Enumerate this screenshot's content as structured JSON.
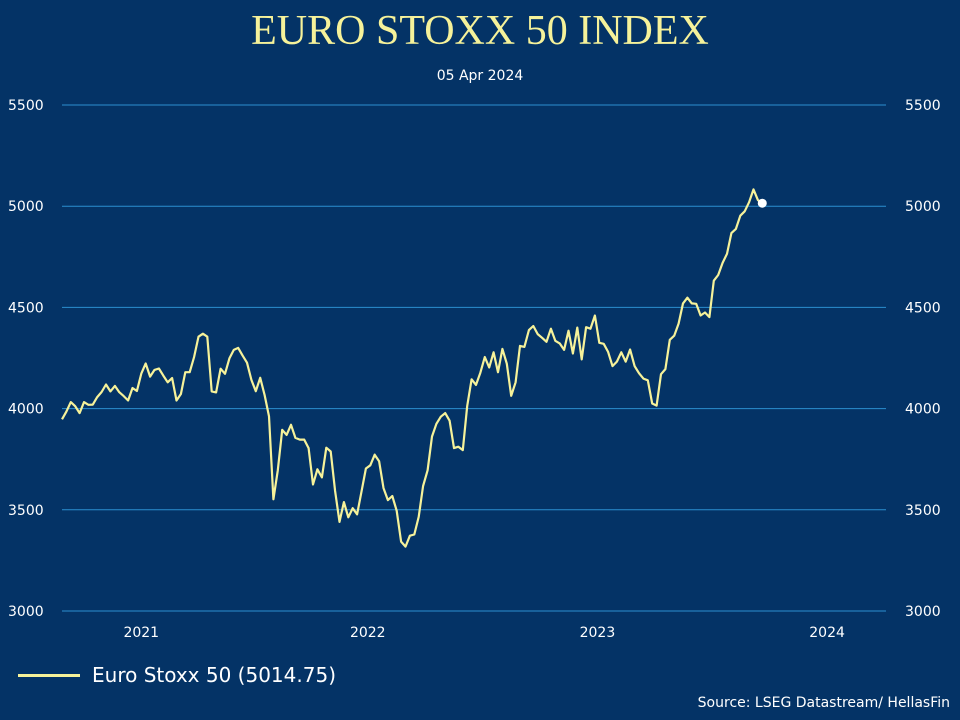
{
  "chart_data": {
    "type": "line",
    "title": "EURO STOXX 50 INDEX",
    "subtitle": "05 Apr 2024",
    "ylim": [
      3000,
      5500
    ],
    "yticks": [
      3000,
      3500,
      4000,
      4500,
      5000,
      5500
    ],
    "xlim": [
      "2020-09-11",
      "2024-04-19"
    ],
    "xticks": [
      {
        "label": "2021",
        "date": "2021-01-15"
      },
      {
        "label": "2022",
        "date": "2022-01-10"
      },
      {
        "label": "2023",
        "date": "2023-01-10"
      },
      {
        "label": "2024",
        "date": "2024-01-10"
      }
    ],
    "grid": true,
    "legend_position": "bottom-left",
    "source": "Source: LSEG Datastream/ HellasFin",
    "series": [
      {
        "name": "Euro Stoxx 50 (5014.75)",
        "color": "#f6f29a",
        "last_marker_color": "#ffffff",
        "points": [
          [
            "2020-09-11",
            3947
          ],
          [
            "2020-09-18",
            3985
          ],
          [
            "2020-09-25",
            4032
          ],
          [
            "2020-10-02",
            4012
          ],
          [
            "2020-10-09",
            3978
          ],
          [
            "2020-10-16",
            4032
          ],
          [
            "2020-10-23",
            4019
          ],
          [
            "2020-10-30",
            4020
          ],
          [
            "2020-11-06",
            4057
          ],
          [
            "2020-11-13",
            4082
          ],
          [
            "2020-11-20",
            4119
          ],
          [
            "2020-11-27",
            4085
          ],
          [
            "2020-12-04",
            4112
          ],
          [
            "2020-12-11",
            4081
          ],
          [
            "2020-12-18",
            4062
          ],
          [
            "2020-12-25",
            4040
          ],
          [
            "2021-01-01",
            4102
          ],
          [
            "2021-01-08",
            4087
          ],
          [
            "2021-01-15",
            4173
          ],
          [
            "2021-01-22",
            4223
          ],
          [
            "2021-01-29",
            4158
          ],
          [
            "2021-02-05",
            4191
          ],
          [
            "2021-02-12",
            4198
          ],
          [
            "2021-02-19",
            4163
          ],
          [
            "2021-02-26",
            4130
          ],
          [
            "2021-03-05",
            4151
          ],
          [
            "2021-03-12",
            4040
          ],
          [
            "2021-03-19",
            4072
          ],
          [
            "2021-03-26",
            4180
          ],
          [
            "2021-04-02",
            4180
          ],
          [
            "2021-04-09",
            4255
          ],
          [
            "2021-04-16",
            4355
          ],
          [
            "2021-04-23",
            4370
          ],
          [
            "2021-04-30",
            4355
          ],
          [
            "2021-05-07",
            4085
          ],
          [
            "2021-05-14",
            4080
          ],
          [
            "2021-05-21",
            4197
          ],
          [
            "2021-05-28",
            4172
          ],
          [
            "2021-06-04",
            4248
          ],
          [
            "2021-06-11",
            4290
          ],
          [
            "2021-06-18",
            4300
          ],
          [
            "2021-06-25",
            4262
          ],
          [
            "2021-07-02",
            4227
          ],
          [
            "2021-07-09",
            4142
          ],
          [
            "2021-07-16",
            4086
          ],
          [
            "2021-07-23",
            4152
          ],
          [
            "2021-07-30",
            4067
          ],
          [
            "2021-08-06",
            3962
          ],
          [
            "2021-08-13",
            3552
          ],
          [
            "2021-08-20",
            3695
          ],
          [
            "2021-08-27",
            3895
          ],
          [
            "2021-09-03",
            3870
          ],
          [
            "2021-09-10",
            3920
          ],
          [
            "2021-09-17",
            3855
          ],
          [
            "2021-09-24",
            3847
          ],
          [
            "2021-10-01",
            3847
          ],
          [
            "2021-10-08",
            3805
          ],
          [
            "2021-10-15",
            3625
          ],
          [
            "2021-10-22",
            3700
          ],
          [
            "2021-10-29",
            3660
          ],
          [
            "2021-11-05",
            3807
          ],
          [
            "2021-11-12",
            3788
          ],
          [
            "2021-11-19",
            3593
          ],
          [
            "2021-11-26",
            3440
          ],
          [
            "2021-12-03",
            3538
          ],
          [
            "2021-12-10",
            3463
          ],
          [
            "2021-12-17",
            3508
          ],
          [
            "2021-12-24",
            3478
          ],
          [
            "2021-12-31",
            3590
          ],
          [
            "2022-01-07",
            3704
          ],
          [
            "2022-01-14",
            3720
          ],
          [
            "2022-01-21",
            3772
          ],
          [
            "2022-01-28",
            3740
          ],
          [
            "2022-02-04",
            3607
          ],
          [
            "2022-02-11",
            3548
          ],
          [
            "2022-02-18",
            3568
          ],
          [
            "2022-02-25",
            3495
          ],
          [
            "2022-03-04",
            3343
          ],
          [
            "2022-03-11",
            3318
          ],
          [
            "2022-03-18",
            3372
          ],
          [
            "2022-03-25",
            3378
          ],
          [
            "2022-04-01",
            3465
          ],
          [
            "2022-04-08",
            3618
          ],
          [
            "2022-04-15",
            3695
          ],
          [
            "2022-04-22",
            3862
          ],
          [
            "2022-04-29",
            3925
          ],
          [
            "2022-05-06",
            3960
          ],
          [
            "2022-05-13",
            3978
          ],
          [
            "2022-05-20",
            3940
          ],
          [
            "2022-05-27",
            3805
          ],
          [
            "2022-06-03",
            3812
          ],
          [
            "2022-06-10",
            3795
          ],
          [
            "2022-06-17",
            4013
          ],
          [
            "2022-06-24",
            4145
          ],
          [
            "2022-07-01",
            4117
          ],
          [
            "2022-07-08",
            4178
          ],
          [
            "2022-07-15",
            4255
          ],
          [
            "2022-07-22",
            4203
          ],
          [
            "2022-07-29",
            4278
          ],
          [
            "2022-08-05",
            4180
          ],
          [
            "2022-08-12",
            4295
          ],
          [
            "2022-08-19",
            4222
          ],
          [
            "2022-08-26",
            4063
          ],
          [
            "2022-09-02",
            4130
          ],
          [
            "2022-09-09",
            4310
          ],
          [
            "2022-09-16",
            4305
          ],
          [
            "2022-09-23",
            4388
          ],
          [
            "2022-09-30",
            4408
          ],
          [
            "2022-10-07",
            4368
          ],
          [
            "2022-10-14",
            4350
          ],
          [
            "2022-10-21",
            4330
          ],
          [
            "2022-10-28",
            4395
          ],
          [
            "2022-11-04",
            4335
          ],
          [
            "2022-11-11",
            4322
          ],
          [
            "2022-11-18",
            4290
          ],
          [
            "2022-11-25",
            4385
          ],
          [
            "2022-12-02",
            4272
          ],
          [
            "2022-12-09",
            4400
          ],
          [
            "2022-12-16",
            4243
          ],
          [
            "2022-12-23",
            4402
          ],
          [
            "2022-12-30",
            4395
          ],
          [
            "2023-01-06",
            4460
          ],
          [
            "2023-01-13",
            4325
          ],
          [
            "2023-01-20",
            4320
          ],
          [
            "2023-01-27",
            4280
          ],
          [
            "2023-02-03",
            4210
          ],
          [
            "2023-02-10",
            4232
          ],
          [
            "2023-02-17",
            4278
          ],
          [
            "2023-02-24",
            4232
          ],
          [
            "2023-03-03",
            4292
          ],
          [
            "2023-03-10",
            4210
          ],
          [
            "2023-03-17",
            4175
          ],
          [
            "2023-03-24",
            4148
          ],
          [
            "2023-03-31",
            4140
          ],
          [
            "2023-04-07",
            4025
          ],
          [
            "2023-04-14",
            4015
          ],
          [
            "2023-04-21",
            4170
          ],
          [
            "2023-04-28",
            4195
          ],
          [
            "2023-05-05",
            4340
          ],
          [
            "2023-05-12",
            4360
          ],
          [
            "2023-05-19",
            4420
          ],
          [
            "2023-05-26",
            4520
          ],
          [
            "2023-06-02",
            4548
          ],
          [
            "2023-06-09",
            4520
          ],
          [
            "2023-06-16",
            4518
          ],
          [
            "2023-06-23",
            4460
          ],
          [
            "2023-06-30",
            4475
          ],
          [
            "2023-07-07",
            4452
          ],
          [
            "2023-07-14",
            4632
          ],
          [
            "2023-07-21",
            4660
          ],
          [
            "2023-07-28",
            4720
          ],
          [
            "2023-08-04",
            4765
          ],
          [
            "2023-08-11",
            4867
          ],
          [
            "2023-08-18",
            4888
          ],
          [
            "2023-08-25",
            4953
          ],
          [
            "2023-09-01",
            4975
          ],
          [
            "2023-09-08",
            5020
          ],
          [
            "2023-09-15",
            5083
          ],
          [
            "2023-09-22",
            5030
          ],
          [
            "2023-09-29",
            5014.75
          ]
        ]
      }
    ]
  }
}
